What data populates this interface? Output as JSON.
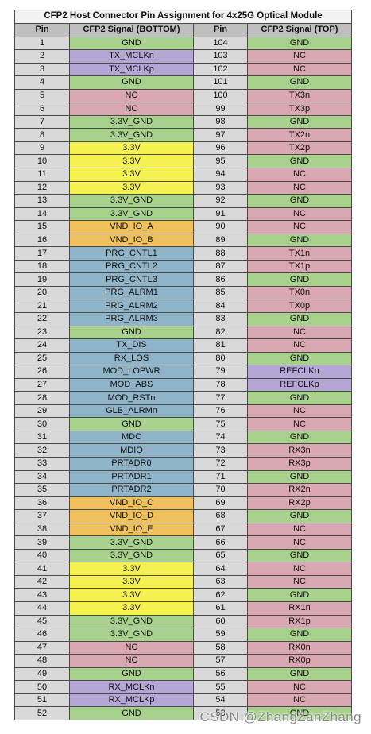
{
  "title": "CFP2 Host Connector Pin Assignment for 4x25G Optical Module",
  "headers": {
    "pin_bottom": "Pin",
    "signal_bottom": "CFP2 Signal (BOTTOM)",
    "pin_top": "Pin",
    "signal_top": "CFP2 Signal (TOP)"
  },
  "palette": {
    "title": "#f2f2f2",
    "header": "#bfbfbf",
    "pin": "#d9d9d9",
    "ground": "#a9d18e",
    "no_connect": "#d9a7b2",
    "clock": "#b4a7d6",
    "power": "#f4f150",
    "vendor": "#f0c05c",
    "control": "#8fb4c8"
  },
  "rows": [
    {
      "pb": "1",
      "sb": "GND",
      "pt": "104",
      "st": "GND"
    },
    {
      "pb": "2",
      "sb": "TX_MCLKn",
      "pt": "103",
      "st": "NC"
    },
    {
      "pb": "3",
      "sb": "TX_MCLKp",
      "pt": "102",
      "st": "NC"
    },
    {
      "pb": "4",
      "sb": "GND",
      "pt": "101",
      "st": "GND"
    },
    {
      "pb": "5",
      "sb": "NC",
      "pt": "100",
      "st": "TX3n"
    },
    {
      "pb": "6",
      "sb": "NC",
      "pt": "99",
      "st": "TX3p"
    },
    {
      "pb": "7",
      "sb": "3.3V_GND",
      "pt": "98",
      "st": "GND"
    },
    {
      "pb": "8",
      "sb": "3.3V_GND",
      "pt": "97",
      "st": "TX2n"
    },
    {
      "pb": "9",
      "sb": "3.3V",
      "pt": "96",
      "st": "TX2p"
    },
    {
      "pb": "10",
      "sb": "3.3V",
      "pt": "95",
      "st": "GND"
    },
    {
      "pb": "11",
      "sb": "3.3V",
      "pt": "94",
      "st": "NC"
    },
    {
      "pb": "12",
      "sb": "3.3V",
      "pt": "93",
      "st": "NC"
    },
    {
      "pb": "13",
      "sb": "3.3V_GND",
      "pt": "92",
      "st": "GND"
    },
    {
      "pb": "14",
      "sb": "3.3V_GND",
      "pt": "91",
      "st": "NC"
    },
    {
      "pb": "15",
      "sb": "VND_IO_A",
      "pt": "90",
      "st": "NC"
    },
    {
      "pb": "16",
      "sb": "VND_IO_B",
      "pt": "89",
      "st": "GND"
    },
    {
      "pb": "17",
      "sb": "PRG_CNTL1",
      "pt": "88",
      "st": "TX1n"
    },
    {
      "pb": "18",
      "sb": "PRG_CNTL2",
      "pt": "87",
      "st": "TX1p"
    },
    {
      "pb": "19",
      "sb": "PRG_CNTL3",
      "pt": "86",
      "st": "GND"
    },
    {
      "pb": "20",
      "sb": "PRG_ALRM1",
      "pt": "85",
      "st": "TX0n"
    },
    {
      "pb": "21",
      "sb": "PRG_ALRM2",
      "pt": "84",
      "st": "TX0p"
    },
    {
      "pb": "22",
      "sb": "PRG_ALRM3",
      "pt": "83",
      "st": "GND"
    },
    {
      "pb": "23",
      "sb": "GND",
      "pt": "82",
      "st": "NC"
    },
    {
      "pb": "24",
      "sb": "TX_DIS",
      "pt": "81",
      "st": "NC"
    },
    {
      "pb": "25",
      "sb": "RX_LOS",
      "pt": "80",
      "st": "GND"
    },
    {
      "pb": "26",
      "sb": "MOD_LOPWR",
      "pt": "79",
      "st": "REFCLKn"
    },
    {
      "pb": "27",
      "sb": "MOD_ABS",
      "pt": "78",
      "st": "REFCLKp"
    },
    {
      "pb": "28",
      "sb": "MOD_RSTn",
      "pt": "77",
      "st": "GND"
    },
    {
      "pb": "29",
      "sb": "GLB_ALRMn",
      "pt": "76",
      "st": "NC"
    },
    {
      "pb": "30",
      "sb": "GND",
      "pt": "75",
      "st": "NC"
    },
    {
      "pb": "31",
      "sb": "MDC",
      "pt": "74",
      "st": "GND"
    },
    {
      "pb": "32",
      "sb": "MDIO",
      "pt": "73",
      "st": "RX3n"
    },
    {
      "pb": "33",
      "sb": "PRTADR0",
      "pt": "72",
      "st": "RX3p"
    },
    {
      "pb": "34",
      "sb": "PRTADR1",
      "pt": "71",
      "st": "GND"
    },
    {
      "pb": "35",
      "sb": "PRTADR2",
      "pt": "70",
      "st": "RX2n"
    },
    {
      "pb": "36",
      "sb": "VND_IO_C",
      "pt": "69",
      "st": "RX2p"
    },
    {
      "pb": "37",
      "sb": "VND_IO_D",
      "pt": "68",
      "st": "GND"
    },
    {
      "pb": "38",
      "sb": "VND_IO_E",
      "pt": "67",
      "st": "NC"
    },
    {
      "pb": "39",
      "sb": "3.3V_GND",
      "pt": "66",
      "st": "NC"
    },
    {
      "pb": "40",
      "sb": "3.3V_GND",
      "pt": "65",
      "st": "GND"
    },
    {
      "pb": "41",
      "sb": "3.3V",
      "pt": "64",
      "st": "NC"
    },
    {
      "pb": "42",
      "sb": "3.3V",
      "pt": "63",
      "st": "NC"
    },
    {
      "pb": "43",
      "sb": "3.3V",
      "pt": "62",
      "st": "GND"
    },
    {
      "pb": "44",
      "sb": "3.3V",
      "pt": "61",
      "st": "RX1n"
    },
    {
      "pb": "45",
      "sb": "3.3V_GND",
      "pt": "60",
      "st": "RX1p"
    },
    {
      "pb": "46",
      "sb": "3.3V_GND",
      "pt": "59",
      "st": "GND"
    },
    {
      "pb": "47",
      "sb": "NC",
      "pt": "58",
      "st": "RX0n"
    },
    {
      "pb": "48",
      "sb": "NC",
      "pt": "57",
      "st": "RX0p"
    },
    {
      "pb": "49",
      "sb": "GND",
      "pt": "56",
      "st": "GND"
    },
    {
      "pb": "50",
      "sb": "RX_MCLKn",
      "pt": "55",
      "st": "NC"
    },
    {
      "pb": "51",
      "sb": "RX_MCLKp",
      "pt": "54",
      "st": "NC"
    },
    {
      "pb": "52",
      "sb": "GND",
      "pt": "53",
      "st": "GND"
    }
  ],
  "watermark": "CSDN @ZhangZanZhang"
}
